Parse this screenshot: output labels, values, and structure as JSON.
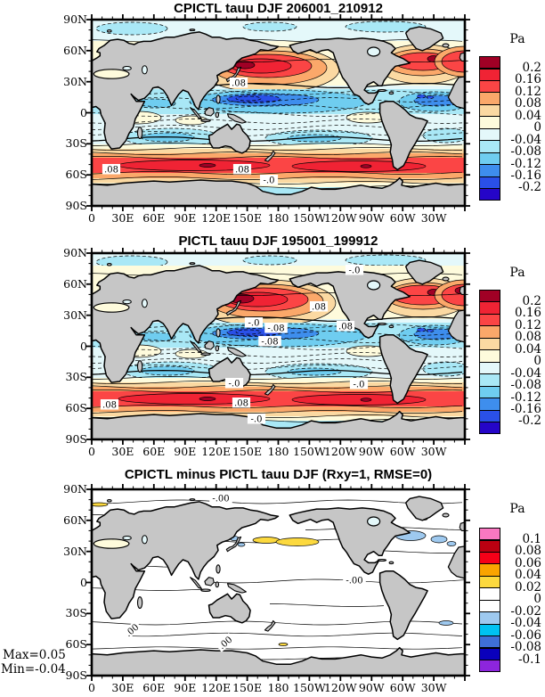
{
  "figure": {
    "background": "#ffffff",
    "land_color": "#c6c6c6"
  },
  "chart_data": {
    "type": "contour-map",
    "axes": {
      "x_ticks": [
        "0",
        "30E",
        "60E",
        "90E",
        "120E",
        "150E",
        "180",
        "150W",
        "120W",
        "90W",
        "60W",
        "30W"
      ],
      "y_ticks": [
        "90N",
        "60N",
        "30N",
        "0",
        "30S",
        "60S",
        "90S"
      ]
    },
    "clim_palette": [
      "#a00025",
      "#f02334",
      "#fb4545",
      "#fba86a",
      "#fbd9a2",
      "#fefbdc",
      "#e4f8fa",
      "#a9e8f6",
      "#6fcdf0",
      "#3e8eed",
      "#2a50e8",
      "#2505c8"
    ],
    "diff_palette": [
      "#fa78c2",
      "#bb0011",
      "#f60018",
      "#faa400",
      "#fcd93e",
      "#ffffff",
      "#ffffff",
      "#9ec9ef",
      "#00c2f2",
      "#3f6fd8",
      "#0a00bb",
      "#8d25dd"
    ],
    "panels": [
      {
        "title": "CPICTL tauu DJF 206001_210912",
        "kind": "climatology",
        "colorbar": {
          "title": "Pa",
          "labels": [
            "0.2",
            "0.16",
            "0.12",
            "0.08",
            "0.04",
            "0",
            "-0.04",
            "-0.08",
            "-0.12",
            "-0.16",
            "-0.2"
          ],
          "levels": [
            -0.2,
            -0.16,
            -0.12,
            -0.08,
            -0.04,
            0,
            0.04,
            0.08,
            0.12,
            0.16,
            0.2
          ]
        },
        "contour_labels": [
          {
            "text": ".08",
            "x": 165,
            "y": 71
          },
          {
            "text": ".08",
            "x": 22,
            "y": 168
          },
          {
            "text": ".08",
            "x": 169,
            "y": 168
          },
          {
            "text": "-.0",
            "x": 199,
            "y": 180
          }
        ],
        "annotations": []
      },
      {
        "title": "PICTL tauu DJF 195001_199912",
        "kind": "climatology",
        "colorbar": {
          "title": "Pa",
          "labels": [
            "0.2",
            "0.16",
            "0.12",
            "0.08",
            "0.04",
            "0",
            "-0.04",
            "-0.08",
            "-0.12",
            "-0.16",
            "-0.2"
          ],
          "levels": [
            -0.2,
            -0.16,
            -0.12,
            -0.08,
            -0.04,
            0,
            0.04,
            0.08,
            0.12,
            0.16,
            0.2
          ]
        },
        "contour_labels": [
          {
            "text": "-.0",
            "x": 295,
            "y": 19
          },
          {
            "text": ".08",
            "x": 255,
            "y": 60
          },
          {
            "text": "-.0",
            "x": 182,
            "y": 78
          },
          {
            "text": "-.08",
            "x": 207,
            "y": 84
          },
          {
            "text": "-.08",
            "x": 200,
            "y": 99
          },
          {
            "text": ".08",
            "x": 285,
            "y": 82
          },
          {
            "text": "-.0",
            "x": 160,
            "y": 146
          },
          {
            "text": "-.0",
            "x": 300,
            "y": 147
          },
          {
            "text": ".08",
            "x": 20,
            "y": 170
          },
          {
            "text": ".08",
            "x": 168,
            "y": 168
          },
          {
            "text": "-.0",
            "x": 185,
            "y": 186
          }
        ],
        "annotations": []
      },
      {
        "title": "CPICTL minus PICTL tauu DJF (Rxy=1, RMSE=0)",
        "kind": "difference",
        "colorbar": {
          "title": "Pa",
          "labels": [
            "0.1",
            "0.08",
            "0.06",
            "0.04",
            "0.02",
            "0",
            "-0.02",
            "-0.04",
            "-0.06",
            "-0.08",
            "-0.1"
          ],
          "levels": [
            -0.1,
            -0.08,
            -0.06,
            -0.04,
            -0.02,
            0,
            0.02,
            0.04,
            0.06,
            0.08,
            0.1
          ]
        },
        "contour_labels": [
          {
            "text": "-.00",
            "x": 145,
            "y": 10
          },
          {
            "text": "-.00",
            "x": 295,
            "y": 102
          },
          {
            "text": ".00",
            "x": 45,
            "y": 158,
            "rot": -40
          },
          {
            "text": ".00",
            "x": 150,
            "y": 172,
            "rot": -40
          }
        ],
        "annotations": [
          {
            "text": "Max=0.05"
          },
          {
            "text": "Min=-0.04"
          }
        ]
      }
    ]
  }
}
